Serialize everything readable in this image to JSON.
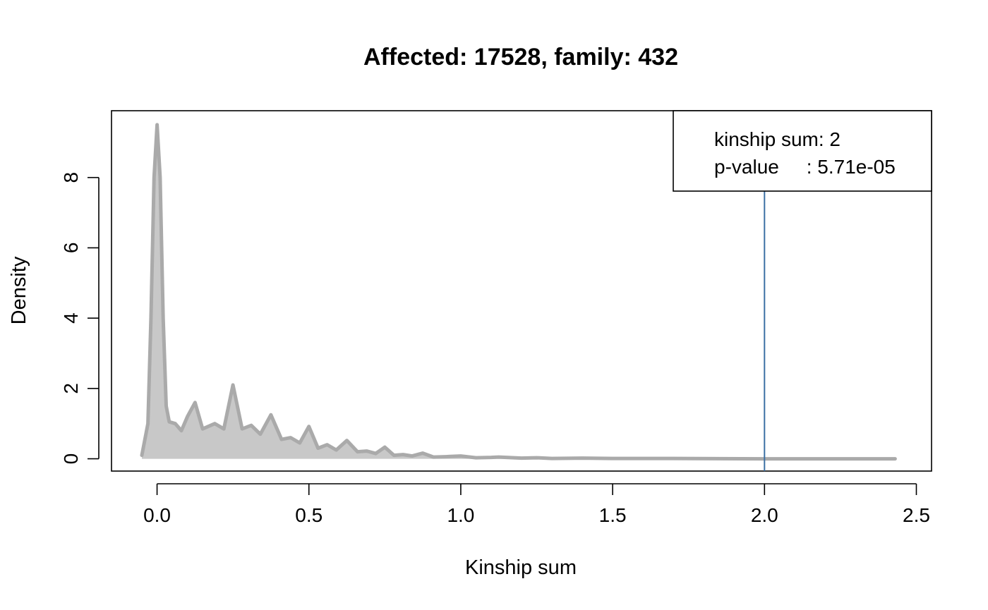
{
  "chart_data": {
    "type": "area",
    "title": "Affected: 17528, family: 432",
    "xlabel": "Kinship sum",
    "ylabel": "Density",
    "xlim": [
      -0.15,
      2.55
    ],
    "ylim": [
      -0.35,
      9.9
    ],
    "x_ticks": [
      0.0,
      0.5,
      1.0,
      1.5,
      2.0,
      2.5
    ],
    "x_tick_labels": [
      "0.0",
      "0.5",
      "1.0",
      "1.5",
      "2.0",
      "2.5"
    ],
    "y_ticks": [
      0,
      2,
      4,
      6,
      8
    ],
    "y_tick_labels": [
      "0",
      "2",
      "4",
      "6",
      "8"
    ],
    "grid": false,
    "series": [
      {
        "x": [
          -0.05,
          -0.03,
          -0.02,
          -0.01,
          0.0,
          0.01,
          0.02,
          0.03,
          0.04,
          0.06,
          0.08,
          0.1,
          0.125,
          0.15,
          0.19,
          0.22,
          0.25,
          0.28,
          0.31,
          0.34,
          0.375,
          0.41,
          0.44,
          0.47,
          0.5,
          0.53,
          0.56,
          0.59,
          0.625,
          0.66,
          0.69,
          0.72,
          0.75,
          0.78,
          0.81,
          0.84,
          0.875,
          0.91,
          0.95,
          1.0,
          1.05,
          1.1,
          1.125,
          1.2,
          1.25,
          1.3,
          1.4,
          1.5,
          1.7,
          2.0,
          2.2,
          2.43
        ],
        "values": [
          0.1,
          1.0,
          4.0,
          8.0,
          9.5,
          8.0,
          4.0,
          1.5,
          1.05,
          1.0,
          0.8,
          1.2,
          1.6,
          0.85,
          1.0,
          0.85,
          2.1,
          0.85,
          0.95,
          0.7,
          1.25,
          0.55,
          0.6,
          0.45,
          0.92,
          0.3,
          0.4,
          0.25,
          0.52,
          0.2,
          0.22,
          0.15,
          0.33,
          0.1,
          0.12,
          0.08,
          0.16,
          0.05,
          0.06,
          0.08,
          0.03,
          0.04,
          0.05,
          0.02,
          0.03,
          0.01,
          0.02,
          0.01,
          0.01,
          0.0,
          0.0,
          0.0
        ],
        "line_color": "#AAAAAA",
        "fill_color": "#C8C8C8"
      }
    ],
    "reference_line": {
      "x": 2.0,
      "color": "#3C70A4"
    },
    "legend": {
      "position": "top-right",
      "lines": [
        "kinship sum: 2",
        "p-value     : 5.71e-05"
      ]
    }
  }
}
